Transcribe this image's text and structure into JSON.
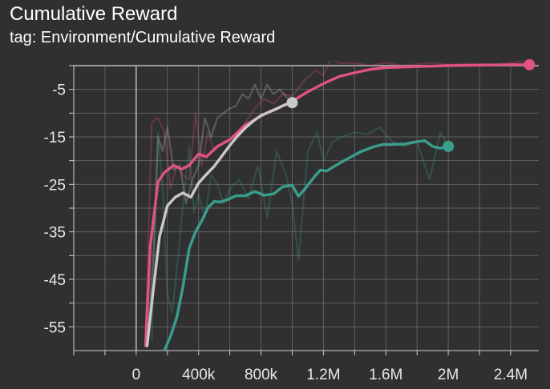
{
  "header": {
    "title": "Cumulative Reward",
    "subtitle": "tag: Environment/Cumulative Reward"
  },
  "colors": {
    "background": "#303030",
    "grid": "#6a6a6a",
    "axis": "#9a9a9a",
    "tick_text": "#e8e8e8"
  },
  "chart_data": {
    "type": "line",
    "title": "Cumulative Reward",
    "subtitle": "tag: Environment/Cumulative Reward",
    "xlabel": "",
    "ylabel": "",
    "xlim": [
      -400000,
      2580000
    ],
    "ylim": [
      -60,
      0
    ],
    "x_ticks": [
      {
        "value": 0,
        "label": "0"
      },
      {
        "value": 400000,
        "label": "400k"
      },
      {
        "value": 800000,
        "label": "800k"
      },
      {
        "value": 1200000,
        "label": "1.2M"
      },
      {
        "value": 1600000,
        "label": "1.6M"
      },
      {
        "value": 2000000,
        "label": "2M"
      },
      {
        "value": 2400000,
        "label": "2.4M"
      }
    ],
    "y_ticks": [
      {
        "value": -5,
        "label": "-5"
      },
      {
        "value": -15,
        "label": "-15"
      },
      {
        "value": -25,
        "label": "-25"
      },
      {
        "value": -35,
        "label": "-35"
      },
      {
        "value": -45,
        "label": "-45"
      },
      {
        "value": -55,
        "label": "-55"
      }
    ],
    "grid": true,
    "series": [
      {
        "color": "#e0537f",
        "end_marker": true,
        "smoothed": [
          [
            60000,
            -59
          ],
          [
            90000,
            -38
          ],
          [
            140000,
            -24.5
          ],
          [
            180000,
            -22.5
          ],
          [
            240000,
            -21
          ],
          [
            290000,
            -21.8
          ],
          [
            340000,
            -21
          ],
          [
            400000,
            -18.6
          ],
          [
            450000,
            -19.2
          ],
          [
            520000,
            -17
          ],
          [
            600000,
            -15.6
          ],
          [
            700000,
            -12.5
          ],
          [
            800000,
            -10.6
          ],
          [
            900000,
            -9
          ],
          [
            1000000,
            -7.5
          ],
          [
            1100000,
            -5.5
          ],
          [
            1200000,
            -3.8
          ],
          [
            1300000,
            -2.3
          ],
          [
            1400000,
            -1.5
          ],
          [
            1500000,
            -0.8
          ],
          [
            1600000,
            -0.4
          ],
          [
            1800000,
            -0.2
          ],
          [
            2000000,
            0
          ],
          [
            2200000,
            0.1
          ],
          [
            2400000,
            0.2
          ],
          [
            2520000,
            0.2
          ]
        ],
        "raw": [
          [
            60000,
            -58
          ],
          [
            100000,
            -12
          ],
          [
            140000,
            -11
          ],
          [
            180000,
            -14
          ],
          [
            220000,
            -26
          ],
          [
            260000,
            -21
          ],
          [
            300000,
            -23
          ],
          [
            340000,
            -24
          ],
          [
            380000,
            -10
          ],
          [
            420000,
            -21
          ],
          [
            460000,
            -14
          ],
          [
            500000,
            -18
          ],
          [
            560000,
            -16
          ],
          [
            620000,
            -15
          ],
          [
            700000,
            -12
          ],
          [
            760000,
            -9
          ],
          [
            820000,
            -7
          ],
          [
            880000,
            -8
          ],
          [
            940000,
            -6
          ],
          [
            1000000,
            -6.5
          ],
          [
            1080000,
            -3
          ],
          [
            1150000,
            -1
          ],
          [
            1200000,
            -2
          ],
          [
            1250000,
            1.5
          ],
          [
            1300000,
            0.5
          ],
          [
            1400000,
            0.5
          ],
          [
            1500000,
            0
          ],
          [
            1600000,
            0.6
          ],
          [
            1700000,
            0
          ],
          [
            1800000,
            0.3
          ],
          [
            1900000,
            0.6
          ],
          [
            2000000,
            0.2
          ],
          [
            2100000,
            0.4
          ],
          [
            2200000,
            0.4
          ],
          [
            2300000,
            0.2
          ],
          [
            2400000,
            0.5
          ],
          [
            2470000,
            1
          ],
          [
            2520000,
            0.2
          ]
        ]
      },
      {
        "color": "#c9c9c9",
        "end_marker": true,
        "smoothed": [
          [
            70000,
            -59
          ],
          [
            110000,
            -47
          ],
          [
            150000,
            -36
          ],
          [
            200000,
            -29.5
          ],
          [
            250000,
            -27.7
          ],
          [
            300000,
            -26.8
          ],
          [
            350000,
            -27.7
          ],
          [
            400000,
            -24.7
          ],
          [
            450000,
            -22.9
          ],
          [
            500000,
            -21.2
          ],
          [
            550000,
            -19
          ],
          [
            600000,
            -16.8
          ],
          [
            650000,
            -14.8
          ],
          [
            700000,
            -13.1
          ],
          [
            750000,
            -11.7
          ],
          [
            800000,
            -10.5
          ],
          [
            850000,
            -9.8
          ],
          [
            900000,
            -9.1
          ],
          [
            950000,
            -8.3
          ],
          [
            1000000,
            -7.8
          ]
        ],
        "raw": [
          [
            70000,
            -59
          ],
          [
            110000,
            -40
          ],
          [
            140000,
            -15
          ],
          [
            170000,
            -18
          ],
          [
            200000,
            -13
          ],
          [
            240000,
            -22
          ],
          [
            280000,
            -21
          ],
          [
            320000,
            -29
          ],
          [
            360000,
            -24
          ],
          [
            400000,
            -21
          ],
          [
            440000,
            -11
          ],
          [
            480000,
            -15
          ],
          [
            520000,
            -11
          ],
          [
            560000,
            -10
          ],
          [
            600000,
            -9
          ],
          [
            640000,
            -8.5
          ],
          [
            680000,
            -6
          ],
          [
            720000,
            -7
          ],
          [
            760000,
            -4
          ],
          [
            800000,
            -7
          ],
          [
            840000,
            -4
          ],
          [
            880000,
            -6
          ],
          [
            920000,
            -5
          ],
          [
            960000,
            -6.5
          ],
          [
            1000000,
            -7.8
          ]
        ]
      },
      {
        "color": "#3a9e8c",
        "end_marker": true,
        "smoothed": [
          [
            180000,
            -60
          ],
          [
            220000,
            -57
          ],
          [
            260000,
            -53
          ],
          [
            300000,
            -46.5
          ],
          [
            340000,
            -38.5
          ],
          [
            380000,
            -35
          ],
          [
            420000,
            -32.7
          ],
          [
            460000,
            -29.9
          ],
          [
            500000,
            -28.6
          ],
          [
            540000,
            -28.7
          ],
          [
            580000,
            -28.3
          ],
          [
            640000,
            -27.4
          ],
          [
            700000,
            -27.4
          ],
          [
            760000,
            -26.5
          ],
          [
            820000,
            -27.3
          ],
          [
            880000,
            -27
          ],
          [
            940000,
            -25.5
          ],
          [
            1000000,
            -25.2
          ],
          [
            1040000,
            -27.5
          ],
          [
            1080000,
            -26
          ],
          [
            1140000,
            -23.5
          ],
          [
            1180000,
            -22
          ],
          [
            1220000,
            -22.2
          ],
          [
            1280000,
            -21
          ],
          [
            1360000,
            -19.5
          ],
          [
            1440000,
            -18.1
          ],
          [
            1520000,
            -17.1
          ],
          [
            1580000,
            -16.6
          ],
          [
            1640000,
            -16.6
          ],
          [
            1720000,
            -16.5
          ],
          [
            1800000,
            -16
          ],
          [
            1850000,
            -15.8
          ],
          [
            1900000,
            -17
          ],
          [
            1950000,
            -17.4
          ],
          [
            2000000,
            -17
          ]
        ],
        "raw": [
          [
            100000,
            -58
          ],
          [
            140000,
            -14
          ],
          [
            170000,
            -26
          ],
          [
            200000,
            -48
          ],
          [
            230000,
            -52
          ],
          [
            270000,
            -40
          ],
          [
            300000,
            -29
          ],
          [
            340000,
            -17
          ],
          [
            370000,
            -31
          ],
          [
            400000,
            -27
          ],
          [
            440000,
            -32
          ],
          [
            480000,
            -23
          ],
          [
            520000,
            -25
          ],
          [
            560000,
            -29
          ],
          [
            600000,
            -26
          ],
          [
            660000,
            -24
          ],
          [
            720000,
            -28
          ],
          [
            780000,
            -21
          ],
          [
            840000,
            -32
          ],
          [
            900000,
            -18
          ],
          [
            960000,
            -23
          ],
          [
            1000000,
            -29
          ],
          [
            1040000,
            -41
          ],
          [
            1100000,
            -18
          ],
          [
            1160000,
            -14
          ],
          [
            1200000,
            -20
          ],
          [
            1260000,
            -16
          ],
          [
            1320000,
            -15
          ],
          [
            1400000,
            -14
          ],
          [
            1480000,
            -14.5
          ],
          [
            1560000,
            -13
          ],
          [
            1640000,
            -16
          ],
          [
            1720000,
            -17
          ],
          [
            1800000,
            -16
          ],
          [
            1880000,
            -24
          ],
          [
            1950000,
            -14
          ],
          [
            2000000,
            -17
          ]
        ]
      }
    ]
  }
}
